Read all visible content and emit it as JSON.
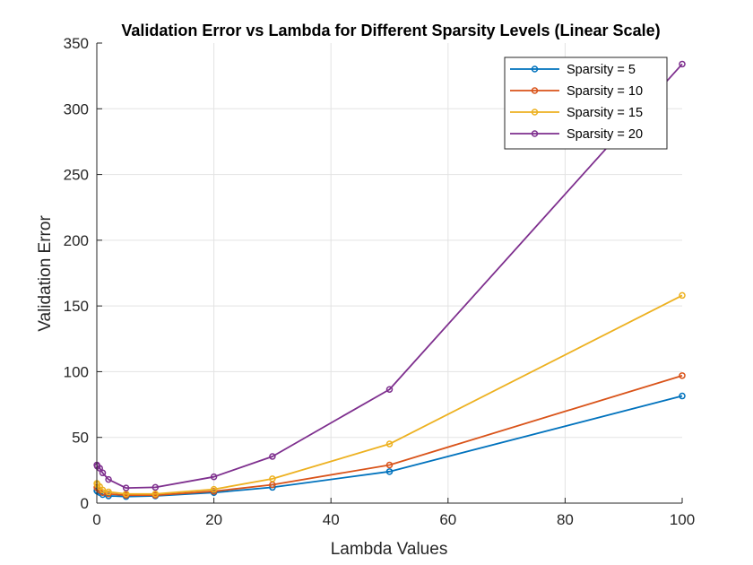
{
  "chart_data": {
    "type": "line",
    "title": "Validation Error vs Lambda for Different Sparsity Levels (Linear Scale)",
    "xlabel": "Lambda Values",
    "ylabel": "Validation Error",
    "xlim": [
      0,
      100
    ],
    "ylim": [
      0,
      350
    ],
    "xticks": [
      0,
      20,
      40,
      60,
      80,
      100
    ],
    "yticks": [
      0,
      50,
      100,
      150,
      200,
      250,
      300,
      350
    ],
    "grid": true,
    "legend_position": "top-right",
    "x": [
      0.01,
      0.1,
      0.5,
      1,
      2,
      5,
      10,
      20,
      30,
      50,
      100
    ],
    "series": [
      {
        "name": "Sparsity = 5",
        "color": "#0072BD",
        "values": [
          9.5,
          9,
          8,
          6.5,
          5.5,
          5,
          5.5,
          8,
          12,
          24,
          81.5
        ]
      },
      {
        "name": "Sparsity = 10",
        "color": "#D95319",
        "values": [
          12,
          11.5,
          10,
          8,
          7,
          6,
          6,
          9,
          14,
          29,
          97
        ]
      },
      {
        "name": "Sparsity = 15",
        "color": "#EDB120",
        "values": [
          15,
          14,
          12.5,
          10,
          8.5,
          7,
          7,
          10.5,
          18.5,
          45,
          158
        ]
      },
      {
        "name": "Sparsity = 20",
        "color": "#7E2F8E",
        "values": [
          29,
          28,
          26.5,
          23,
          18,
          11.5,
          12,
          20,
          35.5,
          86.5,
          334
        ]
      }
    ]
  }
}
